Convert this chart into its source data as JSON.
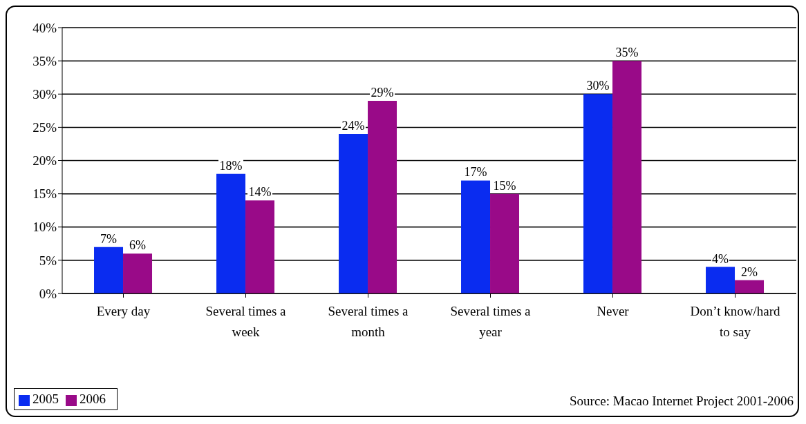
{
  "chart_data": {
    "type": "bar",
    "categories": [
      "Every day",
      "Several times a week",
      "Several times a month",
      "Several times a year",
      "Never",
      "Don’t know/hard to say"
    ],
    "series": [
      {
        "name": "2005",
        "color": "#0a2cf0",
        "values": [
          7,
          18,
          24,
          17,
          30,
          4
        ],
        "value_labels": [
          "7%",
          "18%",
          "24%",
          "17%",
          "30%",
          "4%"
        ]
      },
      {
        "name": "2006",
        "color": "#990a88",
        "values": [
          6,
          14,
          29,
          15,
          35,
          2
        ],
        "value_labels": [
          "6%",
          "14%",
          "29%",
          "15%",
          "35%",
          "2%"
        ]
      }
    ],
    "ylim": [
      0,
      40
    ],
    "yticks": [
      {
        "value": 0,
        "label": "0%"
      },
      {
        "value": 5,
        "label": "5%"
      },
      {
        "value": 10,
        "label": "10%"
      },
      {
        "value": 15,
        "label": "15%"
      },
      {
        "value": 20,
        "label": "20%"
      },
      {
        "value": 25,
        "label": "25%"
      },
      {
        "value": 30,
        "label": "30%"
      },
      {
        "value": 35,
        "label": "35%"
      },
      {
        "value": 40,
        "label": "40%"
      }
    ],
    "grid": "y",
    "legend": "bottom left",
    "annotations": [
      "Source: Macao Internet Project 2001-2006"
    ]
  }
}
